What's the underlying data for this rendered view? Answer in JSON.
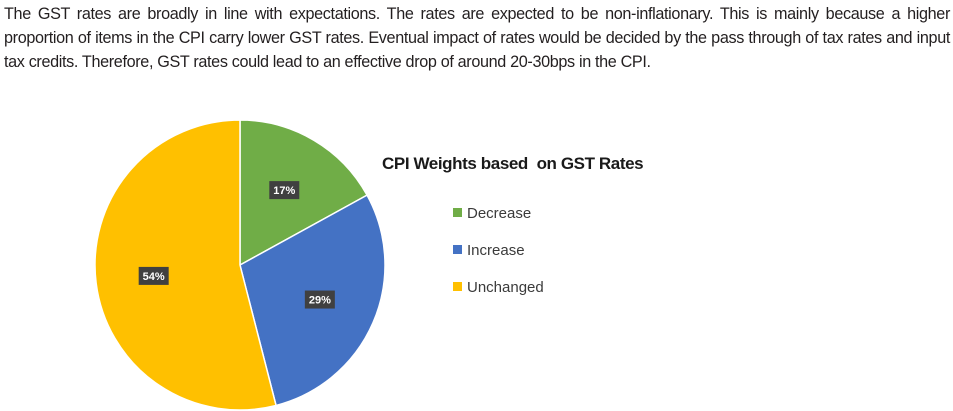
{
  "paragraph": {
    "text": "The GST rates are broadly in line with expectations. The rates are expected to be non-inflationary. This is mainly because a higher proportion of items in the CPI carry lower GST rates. Eventual impact of rates would be decided by the pass through of tax rates and input tax credits. Therefore, GST rates could lead to an effective drop of around 20-30bps in the CPI."
  },
  "chart_data": {
    "type": "pie",
    "title": "CPI Weights based  on GST Rates",
    "start_angle_deg": 0,
    "direction": "clockwise",
    "legend_position": "right",
    "label_format": "percent",
    "slices": [
      {
        "name": "Decrease",
        "label": "17%",
        "value": 17,
        "color": "#70ad47"
      },
      {
        "name": "Increase",
        "label": "29%",
        "value": 29,
        "color": "#4472c4"
      },
      {
        "name": "Unchanged",
        "label": "54%",
        "value": 54,
        "color": "#ffc000"
      }
    ],
    "label_box_color": "#404040"
  }
}
